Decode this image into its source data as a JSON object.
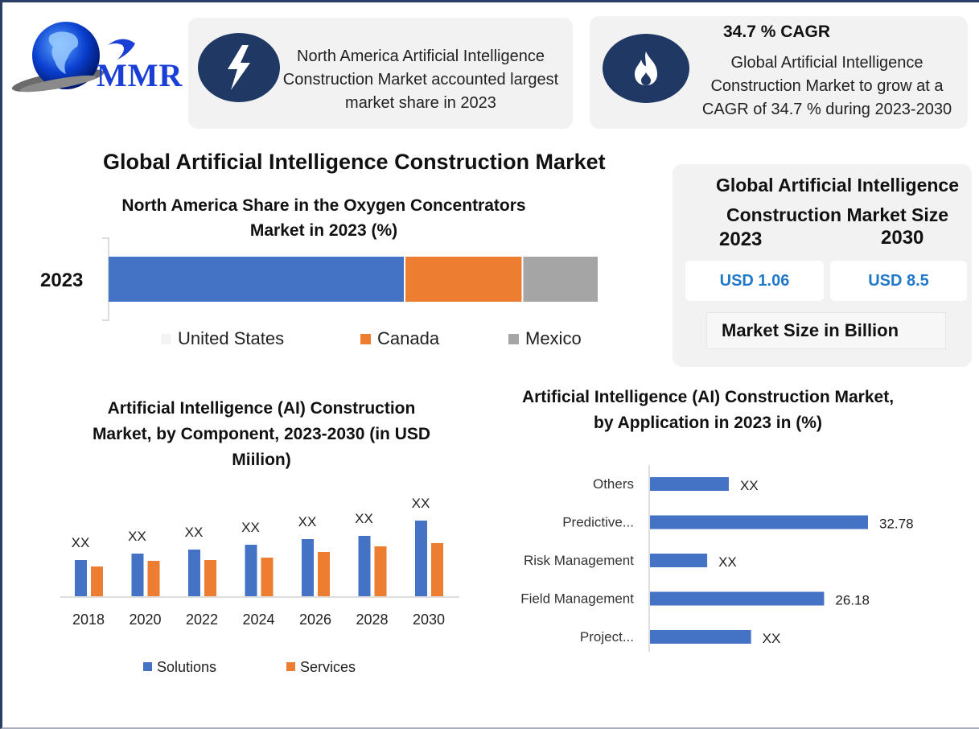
{
  "logo": {
    "text": "MMR",
    "icon": "globe-icon"
  },
  "highlight_cards": [
    {
      "icon": "lightning-bolt-icon",
      "text": "North America Artificial Intelligence Construction Market accounted largest market share in 2023"
    },
    {
      "icon": "flame-icon",
      "headline": "34.7 % CAGR",
      "text": "Global Artificial Intelligence Construction Market to grow at a CAGR of 34.7 % during 2023-2030"
    }
  ],
  "main_title": "Global Artificial Intelligence Construction Market",
  "market_size": {
    "title": "Global Artificial Intelligence Construction Market Size",
    "year_start": "2023",
    "year_end": "2030",
    "value_start": "USD 1.06",
    "value_end": "USD 8.5",
    "unit_label": "Market Size in Billion"
  },
  "colors": {
    "blue": "#4472c4",
    "orange": "#ed7d31",
    "gray": "#a5a5a5",
    "navy": "#203864",
    "value_blue": "#1f78c8"
  },
  "chart_data": [
    {
      "type": "bar",
      "orientation": "horizontal-stacked",
      "title": "North America Share in the Oxygen Concentrators Market in 2023 (%)",
      "categories": [
        "2023"
      ],
      "series": [
        {
          "name": "United States",
          "values": [
            60.5
          ]
        },
        {
          "name": "Canada",
          "values": [
            24.0
          ]
        },
        {
          "name": "Mexico",
          "values": [
            15.5
          ]
        }
      ],
      "xlim": [
        0,
        100
      ],
      "legend": "bottom",
      "grid": false
    },
    {
      "type": "bar",
      "title": "Artificial Intelligence (AI) Construction Market, by Component, 2023-2030 (in USD Miilion)",
      "categories": [
        "2018",
        "2020",
        "2022",
        "2024",
        "2026",
        "2028",
        "2030"
      ],
      "series": [
        {
          "name": "Solutions",
          "values": [
            45,
            53,
            58,
            64,
            71,
            75,
            94
          ]
        },
        {
          "name": "Services",
          "values": [
            37,
            44,
            45,
            48,
            55,
            62,
            66
          ]
        }
      ],
      "data_labels": [
        "XX",
        "XX",
        "XX",
        "XX",
        "XX",
        "XX",
        "XX"
      ],
      "ylim": [
        0,
        100
      ],
      "xlabel": "",
      "ylabel": "",
      "legend": "bottom",
      "grid": false
    },
    {
      "type": "bar",
      "orientation": "horizontal",
      "title": "Artificial Intelligence (AI) Construction Market, by Application in 2023 in (%)",
      "categories": [
        "Others",
        "Predictive...",
        "Risk Management",
        "Field Management",
        "Project..."
      ],
      "values": [
        11.85,
        32.78,
        8.6,
        26.18,
        15.2
      ],
      "data_labels": [
        "XX",
        "32.78",
        "XX",
        "26.18",
        "XX"
      ],
      "xlim": [
        0,
        35
      ],
      "legend": "none",
      "grid": false
    }
  ]
}
